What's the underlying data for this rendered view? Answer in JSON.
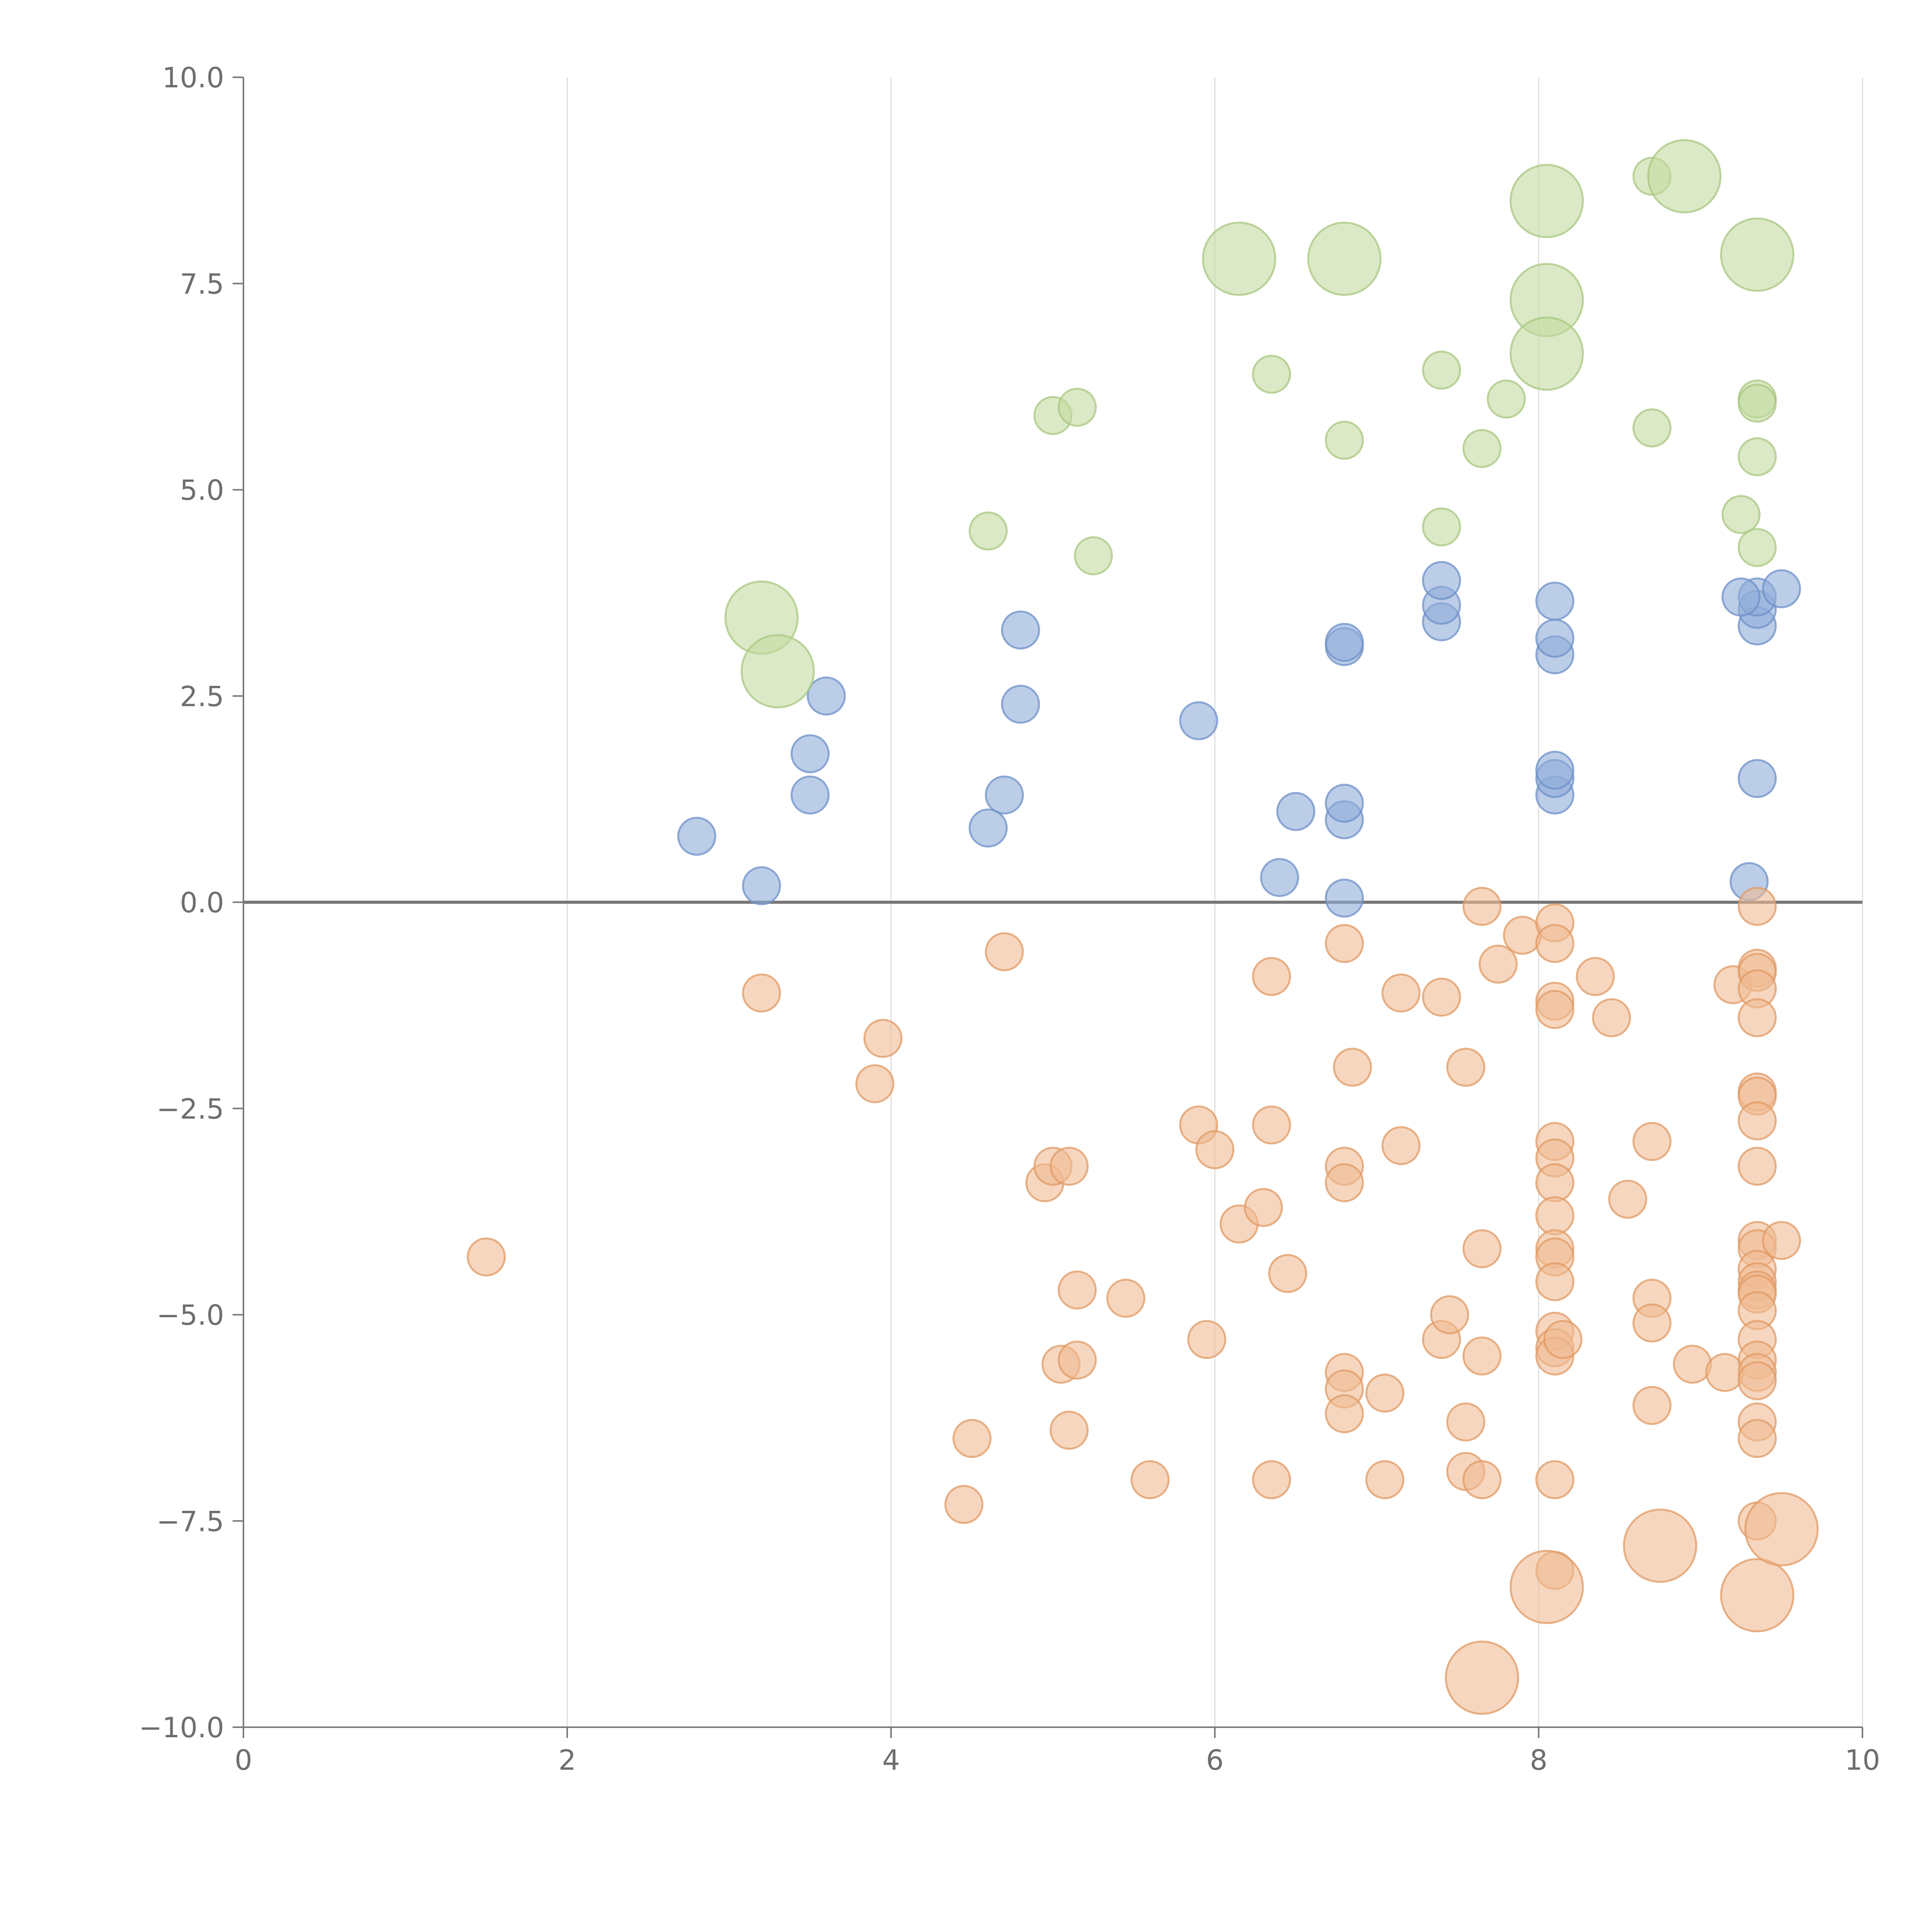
{
  "chart_data": {
    "type": "scatter",
    "title": "",
    "xlabel": "",
    "ylabel": "",
    "xlim": [
      0,
      10
    ],
    "ylim": [
      -10,
      10
    ],
    "x_ticks": [
      "0",
      "2",
      "4",
      "6",
      "8",
      "10"
    ],
    "y_ticks": [
      "10.0",
      "7.5",
      "5.0",
      "2.5",
      "0.0",
      "−2.5",
      "−5.0",
      "−7.5",
      "−10.0"
    ],
    "x_tick_values": [
      0,
      2,
      4,
      6,
      8,
      10
    ],
    "y_tick_values": [
      10,
      7.5,
      5,
      2.5,
      0,
      -2.5,
      -5,
      -7.5,
      -10
    ],
    "grid": "vertical",
    "zero_line": true,
    "series": [
      {
        "name": "blue",
        "color": "#8fabd8",
        "edge": "#6e90c8",
        "points": [
          [
            2.8,
            0.8,
            1
          ],
          [
            3.2,
            0.2,
            1
          ],
          [
            3.5,
            1.3,
            1
          ],
          [
            3.5,
            1.8,
            1
          ],
          [
            3.6,
            2.5,
            1
          ],
          [
            4.6,
            0.9,
            1
          ],
          [
            4.7,
            1.3,
            1
          ],
          [
            4.8,
            2.4,
            1
          ],
          [
            4.8,
            3.3,
            1
          ],
          [
            5.9,
            2.2,
            1
          ],
          [
            6.4,
            0.3,
            1
          ],
          [
            6.5,
            1.1,
            1
          ],
          [
            6.8,
            0.05,
            1
          ],
          [
            6.8,
            1.0,
            1
          ],
          [
            6.8,
            1.2,
            1
          ],
          [
            6.8,
            3.1,
            1
          ],
          [
            6.8,
            3.15,
            1
          ],
          [
            7.4,
            3.4,
            1
          ],
          [
            7.4,
            3.6,
            1
          ],
          [
            7.4,
            3.9,
            1
          ],
          [
            8.1,
            1.3,
            1
          ],
          [
            8.1,
            1.5,
            1
          ],
          [
            8.1,
            1.6,
            1
          ],
          [
            8.1,
            3.0,
            1
          ],
          [
            8.1,
            3.2,
            1
          ],
          [
            8.1,
            3.65,
            1
          ],
          [
            9.3,
            0.25,
            1
          ],
          [
            9.35,
            1.5,
            1
          ],
          [
            9.35,
            3.35,
            1
          ],
          [
            9.35,
            3.55,
            1
          ],
          [
            9.35,
            3.7,
            1
          ],
          [
            9.25,
            3.7,
            1
          ],
          [
            9.5,
            3.8,
            1
          ]
        ]
      },
      {
        "name": "green",
        "color": "#c3dba0",
        "edge": "#a8c780",
        "points": [
          [
            3.2,
            3.45,
            2
          ],
          [
            3.3,
            2.8,
            2
          ],
          [
            4.6,
            4.5,
            1
          ],
          [
            5.0,
            5.9,
            1
          ],
          [
            5.15,
            6.0,
            1
          ],
          [
            5.25,
            4.2,
            1
          ],
          [
            6.15,
            7.8,
            2
          ],
          [
            6.35,
            6.4,
            1
          ],
          [
            6.8,
            7.8,
            2
          ],
          [
            6.8,
            5.6,
            1
          ],
          [
            7.4,
            6.45,
            1
          ],
          [
            7.4,
            4.55,
            1
          ],
          [
            7.65,
            5.5,
            1
          ],
          [
            7.8,
            6.1,
            1
          ],
          [
            8.05,
            8.5,
            2
          ],
          [
            8.05,
            7.3,
            2
          ],
          [
            8.05,
            6.65,
            2
          ],
          [
            8.7,
            8.8,
            1
          ],
          [
            8.9,
            8.8,
            2
          ],
          [
            8.7,
            5.75,
            1
          ],
          [
            9.35,
            7.85,
            2
          ],
          [
            9.35,
            6.1,
            1
          ],
          [
            9.35,
            6.05,
            1
          ],
          [
            9.35,
            5.4,
            1
          ],
          [
            9.25,
            4.7,
            1
          ],
          [
            9.35,
            4.3,
            1
          ]
        ]
      },
      {
        "name": "orange",
        "color": "#f0bb92",
        "edge": "#e09a64",
        "points": [
          [
            1.5,
            -4.3,
            1
          ],
          [
            3.2,
            -1.1,
            1
          ],
          [
            3.9,
            -2.2,
            1
          ],
          [
            3.95,
            -1.65,
            1
          ],
          [
            4.45,
            -7.3,
            1
          ],
          [
            4.5,
            -6.5,
            1
          ],
          [
            4.7,
            -0.6,
            1
          ],
          [
            4.95,
            -3.4,
            1
          ],
          [
            5.0,
            -3.2,
            1
          ],
          [
            5.05,
            -5.6,
            1
          ],
          [
            5.1,
            -3.2,
            1
          ],
          [
            5.1,
            -6.4,
            1
          ],
          [
            5.15,
            -4.7,
            1
          ],
          [
            5.15,
            -5.55,
            1
          ],
          [
            5.45,
            -4.8,
            1
          ],
          [
            5.6,
            -7.0,
            1
          ],
          [
            5.9,
            -2.7,
            1
          ],
          [
            6.0,
            -3.0,
            1
          ],
          [
            5.95,
            -5.3,
            1
          ],
          [
            6.15,
            -3.9,
            1
          ],
          [
            6.3,
            -3.7,
            1
          ],
          [
            6.35,
            -0.9,
            1
          ],
          [
            6.35,
            -2.7,
            1
          ],
          [
            6.35,
            -7.0,
            1
          ],
          [
            6.45,
            -4.5,
            1
          ],
          [
            6.8,
            -0.5,
            1
          ],
          [
            6.8,
            -3.2,
            1
          ],
          [
            6.8,
            -3.4,
            1
          ],
          [
            6.8,
            -5.7,
            1
          ],
          [
            6.8,
            -5.9,
            1
          ],
          [
            6.8,
            -6.2,
            1
          ],
          [
            6.85,
            -2.0,
            1
          ],
          [
            7.05,
            -5.95,
            1
          ],
          [
            7.05,
            -7.0,
            1
          ],
          [
            7.15,
            -1.1,
            1
          ],
          [
            7.15,
            -2.95,
            1
          ],
          [
            7.4,
            -1.15,
            1
          ],
          [
            7.4,
            -5.3,
            1
          ],
          [
            7.45,
            -5.0,
            1
          ],
          [
            7.55,
            -6.3,
            1
          ],
          [
            7.55,
            -6.9,
            1
          ],
          [
            7.55,
            -2.0,
            1
          ],
          [
            7.65,
            -0.05,
            1
          ],
          [
            7.65,
            -4.2,
            1
          ],
          [
            7.65,
            -5.5,
            1
          ],
          [
            7.65,
            -7.0,
            1
          ],
          [
            7.65,
            -9.4,
            2
          ],
          [
            7.75,
            -0.75,
            1
          ],
          [
            7.9,
            -0.4,
            1
          ],
          [
            8.1,
            -0.25,
            1
          ],
          [
            8.1,
            -0.5,
            1
          ],
          [
            8.1,
            -1.2,
            1
          ],
          [
            8.1,
            -1.3,
            1
          ],
          [
            8.1,
            -2.9,
            1
          ],
          [
            8.1,
            -3.1,
            1
          ],
          [
            8.1,
            -3.4,
            1
          ],
          [
            8.1,
            -3.8,
            1
          ],
          [
            8.1,
            -4.2,
            1
          ],
          [
            8.1,
            -4.3,
            1
          ],
          [
            8.1,
            -4.6,
            1
          ],
          [
            8.1,
            -5.2,
            1
          ],
          [
            8.1,
            -5.4,
            1
          ],
          [
            8.1,
            -5.5,
            1
          ],
          [
            8.15,
            -5.3,
            1
          ],
          [
            8.1,
            -7.0,
            1
          ],
          [
            8.1,
            -8.1,
            1
          ],
          [
            8.05,
            -8.3,
            2
          ],
          [
            8.35,
            -0.9,
            1
          ],
          [
            8.45,
            -1.4,
            1
          ],
          [
            8.55,
            -3.6,
            1
          ],
          [
            8.7,
            -2.9,
            1
          ],
          [
            8.7,
            -4.8,
            1
          ],
          [
            8.7,
            -5.1,
            1
          ],
          [
            8.7,
            -6.1,
            1
          ],
          [
            8.75,
            -7.8,
            2
          ],
          [
            8.95,
            -5.6,
            1
          ],
          [
            9.15,
            -5.7,
            1
          ],
          [
            9.2,
            -1.0,
            1
          ],
          [
            9.35,
            -0.05,
            1
          ],
          [
            9.35,
            -0.8,
            1
          ],
          [
            9.35,
            -0.85,
            1
          ],
          [
            9.35,
            -1.05,
            1
          ],
          [
            9.35,
            -1.4,
            1
          ],
          [
            9.35,
            -2.3,
            1
          ],
          [
            9.35,
            -2.35,
            1
          ],
          [
            9.35,
            -2.65,
            1
          ],
          [
            9.35,
            -3.2,
            1
          ],
          [
            9.35,
            -4.1,
            1
          ],
          [
            9.35,
            -4.2,
            1
          ],
          [
            9.35,
            -4.45,
            1
          ],
          [
            9.35,
            -4.6,
            1
          ],
          [
            9.35,
            -4.7,
            1
          ],
          [
            9.35,
            -4.75,
            1
          ],
          [
            9.35,
            -4.95,
            1
          ],
          [
            9.35,
            -5.3,
            1
          ],
          [
            9.35,
            -5.55,
            1
          ],
          [
            9.35,
            -5.7,
            1
          ],
          [
            9.35,
            -5.8,
            1
          ],
          [
            9.35,
            -6.3,
            1
          ],
          [
            9.35,
            -6.5,
            1
          ],
          [
            9.35,
            -7.5,
            1
          ],
          [
            9.35,
            -8.4,
            2
          ],
          [
            9.5,
            -4.1,
            1
          ],
          [
            9.5,
            -7.6,
            2
          ]
        ]
      }
    ]
  }
}
